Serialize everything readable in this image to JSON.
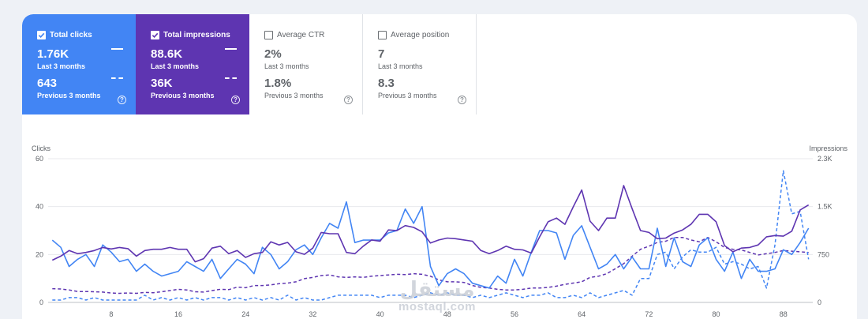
{
  "cards": [
    {
      "title": "Total clicks",
      "checked": true,
      "style": "blue",
      "value": "1.76K",
      "period": "Last 3 months",
      "prev_value": "643",
      "prev_period": "Previous 3 months"
    },
    {
      "title": "Total impressions",
      "checked": true,
      "style": "purple",
      "value": "88.6K",
      "period": "Last 3 months",
      "prev_value": "36K",
      "prev_period": "Previous 3 months"
    },
    {
      "title": "Average CTR",
      "checked": false,
      "style": "white",
      "value": "2%",
      "period": "Last 3 months",
      "prev_value": "1.8%",
      "prev_period": "Previous 3 months"
    },
    {
      "title": "Average position",
      "checked": false,
      "style": "white",
      "value": "7",
      "period": "Last 3 months",
      "prev_value": "8.3",
      "prev_period": "Previous 3 months"
    }
  ],
  "help_glyph": "?",
  "watermark": {
    "arabic": "مستقل",
    "latin": "mostaql.com"
  },
  "chart_data": {
    "type": "line",
    "left_axis": {
      "label": "Clicks",
      "range": [
        0,
        60
      ],
      "ticks": [
        "0",
        "20",
        "40",
        "60"
      ]
    },
    "right_axis": {
      "label": "Impressions",
      "range": [
        0,
        2300
      ],
      "ticks": [
        "0",
        "750",
        "1.5K",
        "2.3K"
      ]
    },
    "x": [
      1,
      2,
      3,
      4,
      5,
      6,
      7,
      8,
      9,
      10,
      11,
      12,
      13,
      14,
      15,
      16,
      17,
      18,
      19,
      20,
      21,
      22,
      23,
      24,
      25,
      26,
      27,
      28,
      29,
      30,
      31,
      32,
      33,
      34,
      35,
      36,
      37,
      38,
      39,
      40,
      41,
      42,
      43,
      44,
      45,
      46,
      47,
      48,
      49,
      50,
      51,
      52,
      53,
      54,
      55,
      56,
      57,
      58,
      59,
      60,
      61,
      62,
      63,
      64,
      65,
      66,
      67,
      68,
      69,
      70,
      71,
      72,
      73,
      74,
      75,
      76,
      77,
      78,
      79,
      80,
      81,
      82,
      83,
      84,
      85,
      86,
      87,
      88,
      89,
      90,
      91
    ],
    "x_ticks": [
      8,
      16,
      24,
      32,
      40,
      48,
      56,
      64,
      72,
      80,
      88
    ],
    "colors": {
      "clicks": "#4285f4",
      "impressions": "#5e35b1",
      "grid": "#e8eaed",
      "axis_text": "#5f6368"
    },
    "series": [
      {
        "key": "clicks_current",
        "axis": "left",
        "style": "solid",
        "color": "#4285f4",
        "values": [
          26,
          23,
          15,
          18,
          20,
          15,
          24,
          21,
          17,
          18,
          13,
          16,
          13,
          11,
          12,
          13,
          17,
          15,
          13,
          18,
          10,
          14,
          18,
          16,
          12,
          23,
          20,
          14,
          17,
          22,
          24,
          20,
          27,
          33,
          31,
          42,
          25,
          26,
          26,
          26,
          29,
          30,
          39,
          33,
          40,
          15,
          7,
          12,
          14,
          12,
          8,
          7,
          6,
          11,
          8,
          18,
          11,
          21,
          30,
          30,
          29,
          18,
          28,
          32,
          23,
          14,
          16,
          20,
          14,
          19,
          14,
          14,
          31,
          15,
          27,
          17,
          15,
          24,
          27,
          18,
          13,
          21,
          10,
          18,
          13,
          13,
          14,
          22,
          20,
          25,
          31
        ]
      },
      {
        "key": "clicks_previous",
        "axis": "left",
        "style": "dashed",
        "color": "#4285f4",
        "values": [
          1,
          1,
          2,
          2,
          1,
          2,
          1,
          1,
          1,
          1,
          1,
          3,
          1,
          2,
          1,
          2,
          1,
          2,
          1,
          2,
          2,
          1,
          2,
          1,
          2,
          1,
          2,
          1,
          3,
          1,
          2,
          1,
          1,
          2,
          3,
          3,
          3,
          3,
          3,
          2,
          3,
          3,
          3,
          2,
          3,
          4,
          3,
          4,
          3,
          3,
          2,
          3,
          2,
          3,
          4,
          3,
          2,
          3,
          3,
          4,
          2,
          2,
          3,
          2,
          4,
          2,
          3,
          4,
          5,
          3,
          10,
          10,
          20,
          21,
          14,
          19,
          22,
          21,
          21,
          23,
          16,
          17,
          16,
          14,
          15,
          6,
          24,
          55,
          37,
          38,
          18
        ]
      },
      {
        "key": "impressions_current",
        "axis": "right",
        "style": "solid",
        "color": "#5e35b1",
        "values": [
          676,
          740,
          830,
          780,
          800,
          830,
          880,
          855,
          880,
          860,
          740,
          830,
          850,
          850,
          880,
          850,
          850,
          650,
          700,
          870,
          900,
          780,
          830,
          720,
          780,
          800,
          970,
          920,
          960,
          810,
          770,
          870,
          1120,
          1100,
          1100,
          800,
          780,
          900,
          1000,
          980,
          1160,
          1150,
          1230,
          1200,
          1130,
          950,
          1000,
          1030,
          1020,
          1000,
          980,
          830,
          780,
          830,
          900,
          850,
          840,
          790,
          1050,
          1290,
          1350,
          1250,
          1530,
          1800,
          1300,
          1150,
          1350,
          1350,
          1870,
          1500,
          1150,
          1120,
          1020,
          1030,
          1110,
          1160,
          1250,
          1410,
          1410,
          1290,
          910,
          810,
          870,
          880,
          920,
          1050,
          1070,
          1060,
          1140,
          1480,
          1560
        ]
      },
      {
        "key": "impressions_previous",
        "axis": "right",
        "style": "dashed",
        "color": "#5e35b1",
        "values": [
          220,
          215,
          200,
          175,
          175,
          170,
          165,
          150,
          145,
          150,
          145,
          160,
          155,
          170,
          190,
          210,
          200,
          170,
          165,
          190,
          210,
          205,
          245,
          235,
          270,
          270,
          280,
          300,
          310,
          330,
          380,
          400,
          430,
          440,
          410,
          400,
          410,
          400,
          420,
          430,
          440,
          450,
          445,
          460,
          450,
          420,
          360,
          330,
          330,
          320,
          270,
          240,
          230,
          210,
          200,
          200,
          210,
          230,
          230,
          240,
          260,
          290,
          310,
          330,
          400,
          420,
          460,
          540,
          620,
          740,
          850,
          900,
          960,
          980,
          1040,
          1040,
          1000,
          970,
          1040,
          970,
          880,
          850,
          840,
          800,
          760,
          780,
          800,
          830,
          820,
          810,
          800
        ]
      }
    ]
  }
}
